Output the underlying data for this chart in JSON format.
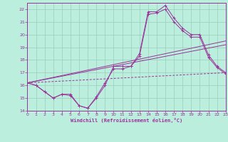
{
  "bg_color": "#bbeedd",
  "grid_color": "#99ccbb",
  "line_color": "#993399",
  "xlabel": "Windchill (Refroidissement éolien,°C)",
  "xlim": [
    0,
    23
  ],
  "ylim": [
    14,
    22.5
  ],
  "xticks": [
    0,
    1,
    2,
    3,
    4,
    5,
    6,
    7,
    8,
    9,
    10,
    11,
    12,
    13,
    14,
    15,
    16,
    17,
    18,
    19,
    20,
    21,
    22,
    23
  ],
  "yticks": [
    14,
    15,
    16,
    17,
    18,
    19,
    20,
    21,
    22
  ],
  "curve1_x": [
    0,
    1,
    2,
    3,
    4,
    5,
    6,
    7,
    8,
    9,
    10,
    11,
    12,
    13,
    14,
    15,
    16,
    17,
    18,
    19,
    20,
    21,
    22,
    23
  ],
  "curve1_y": [
    16.2,
    16.0,
    15.5,
    15.0,
    15.3,
    15.3,
    14.4,
    14.2,
    15.0,
    16.0,
    17.5,
    17.5,
    17.5,
    18.5,
    21.8,
    21.8,
    22.3,
    21.3,
    20.5,
    20.0,
    20.0,
    18.4,
    17.5,
    17.0
  ],
  "curve2_x": [
    0,
    1,
    2,
    3,
    4,
    5,
    6,
    7,
    8,
    9,
    10,
    11,
    12,
    13,
    14,
    15,
    16,
    17,
    18,
    19,
    20,
    21,
    22,
    23
  ],
  "curve2_y": [
    16.2,
    16.0,
    15.5,
    15.0,
    15.3,
    15.2,
    14.4,
    14.2,
    15.1,
    16.2,
    17.3,
    17.3,
    17.5,
    18.3,
    21.6,
    21.7,
    22.0,
    21.0,
    20.3,
    19.8,
    19.8,
    18.2,
    17.4,
    16.9
  ],
  "line1_x": [
    0,
    23
  ],
  "line1_y": [
    16.2,
    17.0
  ],
  "line2_x": [
    0,
    23
  ],
  "line2_y": [
    16.2,
    19.5
  ],
  "line3_x": [
    0,
    23
  ],
  "line3_y": [
    16.2,
    19.2
  ]
}
